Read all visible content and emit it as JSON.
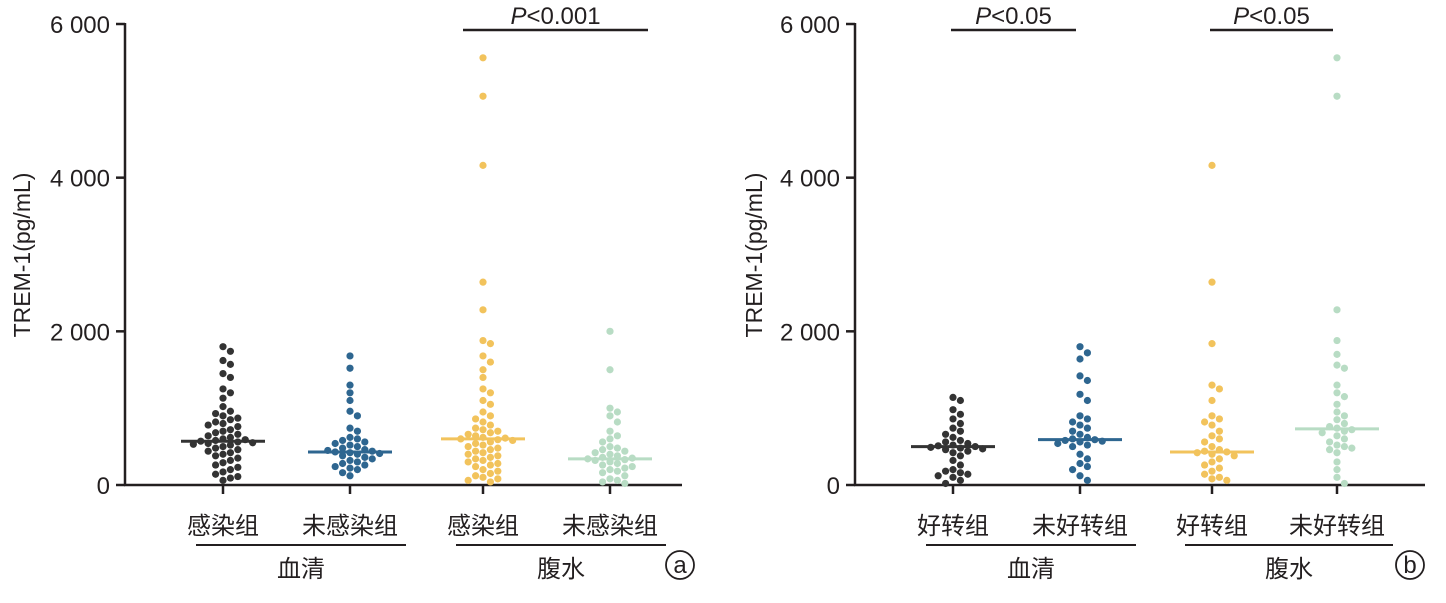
{
  "chart_data": [
    {
      "type": "scatter",
      "panel_label": "a",
      "ylabel": "TREM-1(pg/mL)",
      "ylim": [
        0,
        6000
      ],
      "yticks": [
        0,
        2000,
        4000,
        6000
      ],
      "ytick_labels": [
        "0",
        "2 000",
        "4 000",
        "6 000"
      ],
      "categories": [
        "感染组",
        "未感染组",
        "感染组",
        "未感染组"
      ],
      "category_groups": [
        {
          "label": "血清",
          "members": [
            0,
            1
          ]
        },
        {
          "label": "腹水",
          "members": [
            2,
            3
          ]
        }
      ],
      "annotations": [
        {
          "text_italic": "P",
          "text": "<0.001",
          "over": [
            2,
            2
          ]
        }
      ],
      "series": [
        {
          "color": "#333333",
          "median": 570,
          "values": [
            1800,
            1740,
            1620,
            1570,
            1450,
            1400,
            1250,
            1200,
            1130,
            1020,
            960,
            930,
            900,
            870,
            850,
            820,
            800,
            780,
            760,
            720,
            700,
            680,
            660,
            640,
            620,
            600,
            590,
            580,
            570,
            560,
            550,
            540,
            530,
            520,
            500,
            480,
            460,
            440,
            420,
            400,
            380,
            350,
            320,
            290,
            260,
            230,
            200,
            170,
            140,
            110,
            90,
            60
          ]
        },
        {
          "color": "#2e6690",
          "median": 430,
          "values": [
            1680,
            1520,
            1300,
            1200,
            1100,
            960,
            900,
            740,
            700,
            620,
            600,
            580,
            560,
            540,
            520,
            500,
            480,
            460,
            450,
            440,
            430,
            420,
            410,
            400,
            380,
            360,
            340,
            320,
            300,
            280,
            260,
            240,
            220,
            200,
            160,
            120
          ]
        },
        {
          "color": "#f2c35c",
          "median": 600,
          "values": [
            5560,
            5060,
            4160,
            2640,
            2280,
            1880,
            1840,
            1680,
            1600,
            1500,
            1400,
            1250,
            1200,
            1100,
            1050,
            950,
            900,
            860,
            820,
            780,
            740,
            720,
            700,
            680,
            660,
            640,
            620,
            610,
            600,
            590,
            580,
            560,
            540,
            520,
            500,
            480,
            460,
            440,
            420,
            400,
            380,
            360,
            340,
            320,
            300,
            280,
            260,
            240,
            200,
            180,
            150,
            120,
            100,
            80,
            60,
            40
          ]
        },
        {
          "color": "#b8dcc4",
          "median": 340,
          "values": [
            2000,
            1500,
            1000,
            950,
            900,
            820,
            700,
            640,
            600,
            560,
            500,
            480,
            460,
            440,
            420,
            400,
            380,
            360,
            350,
            340,
            330,
            320,
            300,
            280,
            260,
            240,
            220,
            200,
            180,
            160,
            120,
            80,
            60,
            40,
            20
          ]
        }
      ]
    },
    {
      "type": "scatter",
      "panel_label": "b",
      "ylabel": "TREM-1(pg/mL)",
      "ylim": [
        0,
        6000
      ],
      "yticks": [
        0,
        2000,
        4000,
        6000
      ],
      "ytick_labels": [
        "0",
        "2 000",
        "4 000",
        "6 000"
      ],
      "categories": [
        "好转组",
        "未好转组",
        "好转组",
        "未好转组"
      ],
      "category_groups": [
        {
          "label": "血清",
          "members": [
            0,
            1
          ]
        },
        {
          "label": "腹水",
          "members": [
            2,
            3
          ]
        }
      ],
      "annotations": [
        {
          "text_italic": "P",
          "text": "<0.05",
          "over": [
            0,
            1
          ]
        },
        {
          "text_italic": "P",
          "text": "<0.05",
          "over": [
            2,
            3
          ]
        }
      ],
      "series": [
        {
          "color": "#333333",
          "median": 500,
          "values": [
            1140,
            1100,
            980,
            920,
            860,
            800,
            740,
            700,
            660,
            620,
            580,
            560,
            540,
            520,
            510,
            500,
            490,
            480,
            470,
            460,
            440,
            420,
            380,
            320,
            260,
            200,
            180,
            160,
            140,
            120,
            100,
            60,
            20
          ]
        },
        {
          "color": "#2e6690",
          "median": 590,
          "values": [
            1800,
            1720,
            1640,
            1420,
            1360,
            1180,
            1100,
            900,
            860,
            820,
            780,
            740,
            700,
            660,
            620,
            600,
            590,
            580,
            570,
            560,
            540,
            520,
            500,
            400,
            340,
            280,
            240,
            200,
            120,
            60
          ]
        },
        {
          "color": "#f2c35c",
          "median": 430,
          "values": [
            4160,
            2640,
            1840,
            1300,
            1250,
            1100,
            900,
            860,
            820,
            780,
            700,
            640,
            600,
            560,
            500,
            460,
            440,
            430,
            420,
            400,
            380,
            340,
            300,
            260,
            220,
            180,
            140,
            100,
            80,
            60
          ]
        },
        {
          "color": "#b8dcc4",
          "median": 730,
          "values": [
            5560,
            5060,
            2280,
            1880,
            1700,
            1560,
            1520,
            1300,
            1200,
            1150,
            1050,
            950,
            900,
            850,
            800,
            760,
            740,
            720,
            700,
            680,
            640,
            600,
            560,
            520,
            500,
            480,
            460,
            420,
            300,
            200,
            100,
            20
          ]
        }
      ]
    }
  ]
}
